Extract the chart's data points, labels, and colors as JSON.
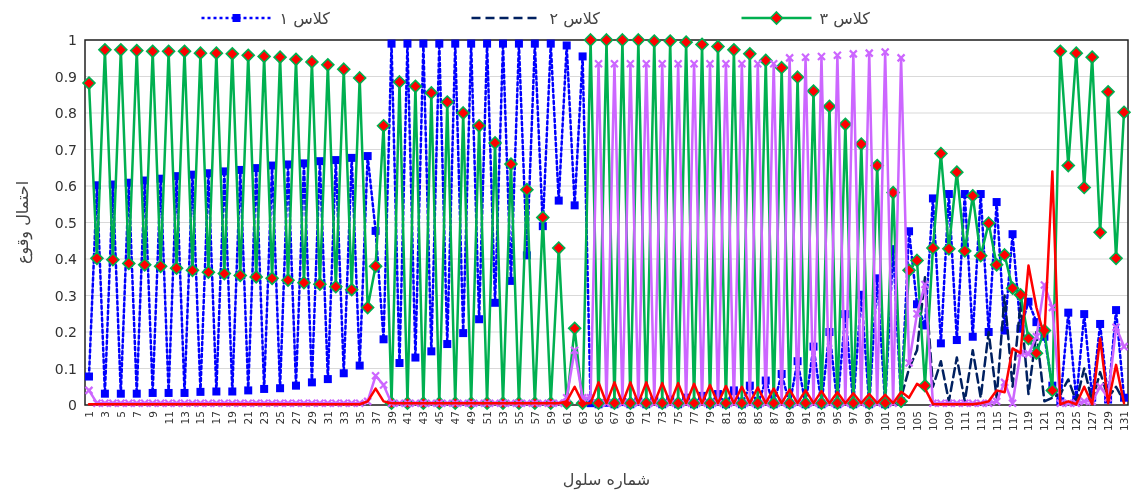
{
  "chart_data": {
    "type": "line",
    "xlabel": "شماره سلول",
    "ylabel": "احتمال وقوع",
    "ylim": [
      0,
      1
    ],
    "yticks": [
      0,
      0.1,
      0.2,
      0.3,
      0.4,
      0.5,
      0.6,
      0.7,
      0.8,
      0.9,
      1
    ],
    "grid": "y",
    "legend": "top",
    "categories": [
      "1",
      null,
      "3",
      null,
      "5",
      null,
      "7",
      null,
      "9",
      null,
      "11",
      null,
      "13",
      null,
      "15",
      null,
      "17",
      null,
      "19",
      null,
      "21",
      null,
      "23",
      null,
      "25",
      null,
      "27",
      null,
      "29",
      null,
      "31",
      null,
      "33",
      null,
      "35",
      null,
      "37",
      null,
      "39",
      null,
      "41",
      null,
      "43",
      null,
      "45",
      null,
      "47",
      null,
      "49",
      null,
      "51",
      null,
      "53",
      null,
      "55",
      null,
      "57",
      null,
      "59",
      null,
      "61",
      null,
      "63",
      null,
      "65",
      null,
      "67",
      null,
      "69",
      null,
      "71",
      null,
      "73",
      null,
      "75",
      null,
      "77",
      null,
      "79",
      null,
      "81",
      null,
      "83",
      null,
      "85",
      null,
      "87",
      null,
      "89",
      null,
      "91",
      null,
      "93",
      null,
      "95",
      null,
      "97",
      null,
      "99",
      null,
      "101",
      null,
      "103",
      null,
      "105",
      null,
      "107",
      null,
      "109",
      null,
      "111",
      null,
      "113",
      null,
      "115",
      null,
      "117",
      null,
      "119",
      null,
      "121",
      null,
      "123",
      null,
      "125",
      null,
      "127",
      null,
      "129",
      null,
      "131"
    ],
    "series": [
      {
        "name": "کلاس ۱",
        "color": "#0000ff",
        "marker": "square",
        "line_style": "dotted",
        "values": [
          0.078,
          0.602,
          0.031,
          0.604,
          0.031,
          0.609,
          0.031,
          0.615,
          0.033,
          0.62,
          0.033,
          0.627,
          0.033,
          0.631,
          0.036,
          0.635,
          0.037,
          0.64,
          0.037,
          0.644,
          0.04,
          0.649,
          0.044,
          0.656,
          0.046,
          0.659,
          0.053,
          0.662,
          0.062,
          0.668,
          0.071,
          0.671,
          0.087,
          0.677,
          0.108,
          0.682,
          0.477,
          0.18,
          0.99,
          0.115,
          0.99,
          0.13,
          0.99,
          0.147,
          0.99,
          0.167,
          0.99,
          0.197,
          0.99,
          0.235,
          0.99,
          0.28,
          0.99,
          0.34,
          0.99,
          0.41,
          0.99,
          0.49,
          0.99,
          0.56,
          0.985,
          0.547,
          0.955,
          0.005,
          0.002,
          0.006,
          0.002,
          0.008,
          0.002,
          0.01,
          0.002,
          0.012,
          0.002,
          0.015,
          0.002,
          0.02,
          0.002,
          0.025,
          0.002,
          0.03,
          0.002,
          0.04,
          0.002,
          0.053,
          0.002,
          0.067,
          0.002,
          0.085,
          0.002,
          0.12,
          0.002,
          0.16,
          0.002,
          0.2,
          0.002,
          0.249,
          0.002,
          0.302,
          0.002,
          0.347,
          0.002,
          0.427,
          0.01,
          0.476,
          0.276,
          0.218,
          0.566,
          0.169,
          0.578,
          0.178,
          0.578,
          0.187,
          0.578,
          0.2,
          0.556,
          0.204,
          0.468,
          0.209,
          0.283,
          0.227,
          0.187,
          0.053,
          0.01,
          0.253,
          0.015,
          0.249,
          0.02,
          0.222,
          0.015,
          0.26,
          0.02
        ]
      },
      {
        "name": "کلاس ۲",
        "color": "#002060",
        "marker": "none",
        "line_style": "dashed",
        "values": [
          null,
          null,
          null,
          null,
          null,
          null,
          null,
          null,
          null,
          null,
          null,
          null,
          null,
          null,
          null,
          null,
          null,
          null,
          null,
          null,
          null,
          null,
          null,
          null,
          null,
          null,
          null,
          null,
          null,
          null,
          null,
          null,
          null,
          null,
          null,
          null,
          null,
          null,
          null,
          null,
          null,
          null,
          null,
          null,
          null,
          null,
          null,
          null,
          null,
          null,
          null,
          null,
          null,
          null,
          null,
          null,
          null,
          null,
          null,
          null,
          null,
          null,
          null,
          null,
          null,
          null,
          null,
          null,
          null,
          null,
          null,
          null,
          null,
          null,
          null,
          null,
          null,
          null,
          null,
          null,
          null,
          null,
          null,
          null,
          null,
          null,
          null,
          null,
          null,
          null,
          null,
          null,
          null,
          null,
          null,
          null,
          null,
          null,
          null,
          null,
          null,
          0.002,
          0.02,
          0.1,
          0.15,
          0.35,
          0.05,
          0.12,
          0.01,
          0.13,
          0.01,
          0.15,
          0.02,
          0.2,
          0.02,
          0.3,
          0.05,
          0.28,
          0.03,
          0.2,
          0.01,
          0.02,
          0.03,
          0.07,
          0.01,
          0.1,
          0.01,
          0.09,
          0.02,
          0.05,
          0.01
        ]
      },
      {
        "name": "کلاس ۳",
        "color": "#00b050",
        "marker": "diamond",
        "line_style": "solid",
        "values": [
          0.882,
          0.402,
          0.973,
          0.398,
          0.973,
          0.388,
          0.971,
          0.384,
          0.969,
          0.38,
          0.969,
          0.375,
          0.969,
          0.369,
          0.964,
          0.364,
          0.964,
          0.36,
          0.962,
          0.355,
          0.958,
          0.351,
          0.955,
          0.347,
          0.953,
          0.342,
          0.947,
          0.335,
          0.94,
          0.331,
          0.932,
          0.324,
          0.92,
          0.316,
          0.896,
          0.267,
          0.38,
          0.765,
          0.005,
          0.885,
          0.005,
          0.873,
          0.005,
          0.855,
          0.005,
          0.83,
          0.005,
          0.8,
          0.005,
          0.765,
          0.005,
          0.718,
          0.005,
          0.66,
          0.005,
          0.59,
          0.005,
          0.514,
          0.005,
          0.43,
          0.005,
          0.21,
          0.005,
          1,
          0.005,
          1,
          0.005,
          1,
          0.005,
          1,
          0.005,
          0.997,
          0.005,
          0.997,
          0.005,
          0.994,
          0.005,
          0.988,
          0.005,
          0.982,
          0.005,
          0.973,
          0.005,
          0.962,
          0.005,
          0.944,
          0.005,
          0.924,
          0.005,
          0.898,
          0.005,
          0.86,
          0.005,
          0.818,
          0.005,
          0.769,
          0.005,
          0.715,
          0.005,
          0.656,
          0.005,
          0.582,
          0.01,
          0.369,
          0.396,
          0.053,
          0.43,
          0.689,
          0.428,
          0.638,
          0.422,
          0.573,
          0.409,
          0.498,
          0.384,
          0.411,
          0.32,
          0.302,
          0.182,
          0.142,
          0.204,
          0.04,
          0.969,
          0.656,
          0.964,
          0.596,
          0.953,
          0.473,
          0.858,
          0.402,
          0.802
        ]
      },
      {
        "color": "#cc66ff",
        "marker": "cross",
        "line_style": "solid",
        "values": [
          0.04,
          0.005,
          0.005,
          0.005,
          0.005,
          0.005,
          0.005,
          0.005,
          0.005,
          0.005,
          0.005,
          0.005,
          0.005,
          0.005,
          0.005,
          0.005,
          0.005,
          0.005,
          0.005,
          0.005,
          0.005,
          0.005,
          0.005,
          0.005,
          0.005,
          0.005,
          0.005,
          0.005,
          0.005,
          0.005,
          0.005,
          0.005,
          0.005,
          0.005,
          0.005,
          0.01,
          0.08,
          0.055,
          0.005,
          0.005,
          0.005,
          0.005,
          0.005,
          0.005,
          0.005,
          0.005,
          0.005,
          0.005,
          0.005,
          0.005,
          0.005,
          0.005,
          0.005,
          0.005,
          0.005,
          0.005,
          0.005,
          0.005,
          0.005,
          0.005,
          0.02,
          0.15,
          0.02,
          0.02,
          0.935,
          0.005,
          0.935,
          0.005,
          0.935,
          0.005,
          0.935,
          0.005,
          0.935,
          0.005,
          0.935,
          0.005,
          0.935,
          0.005,
          0.935,
          0.005,
          0.935,
          0.005,
          0.935,
          0.005,
          0.935,
          0.005,
          0.935,
          0.005,
          0.951,
          0.005,
          0.953,
          0.005,
          0.955,
          0.005,
          0.958,
          0.005,
          0.962,
          0.005,
          0.964,
          0.005,
          0.967,
          0.005,
          0.951,
          0.115,
          0.25,
          0.33,
          0.005,
          0.005,
          0.005,
          0.005,
          0.005,
          0.005,
          0.005,
          0.005,
          0.01,
          0.062,
          0.005,
          0.142,
          0.14,
          0.187,
          0.329,
          0.267,
          0.005,
          0.005,
          0.005,
          0.01,
          0.01,
          0.05,
          0.02,
          0.213,
          0.16
        ]
      },
      {
        "color": "#ff0000",
        "marker": "none",
        "line_style": "solid",
        "values": [
          0.002,
          0.002,
          0.002,
          0.002,
          0.002,
          0.002,
          0.002,
          0.002,
          0.002,
          0.002,
          0.002,
          0.002,
          0.002,
          0.002,
          0.002,
          0.002,
          0.002,
          0.002,
          0.002,
          0.002,
          0.002,
          0.002,
          0.002,
          0.002,
          0.002,
          0.002,
          0.002,
          0.002,
          0.002,
          0.002,
          0.002,
          0.002,
          0.002,
          0.002,
          0.002,
          0.01,
          0.045,
          0.01,
          0.005,
          0.005,
          0.005,
          0.005,
          0.005,
          0.005,
          0.005,
          0.005,
          0.005,
          0.005,
          0.005,
          0.005,
          0.005,
          0.005,
          0.005,
          0.005,
          0.005,
          0.005,
          0.005,
          0.005,
          0.005,
          0.005,
          0.01,
          0.05,
          0.005,
          0.005,
          0.062,
          0.005,
          0.062,
          0.005,
          0.062,
          0.005,
          0.062,
          0.005,
          0.06,
          0.005,
          0.06,
          0.005,
          0.058,
          0.005,
          0.055,
          0.005,
          0.052,
          0.005,
          0.05,
          0.005,
          0.048,
          0.005,
          0.045,
          0.005,
          0.042,
          0.005,
          0.04,
          0.005,
          0.038,
          0.005,
          0.035,
          0.005,
          0.032,
          0.005,
          0.03,
          0.005,
          0.028,
          0.005,
          0.036,
          0.02,
          0.058,
          0.045,
          0.003,
          0.002,
          0.002,
          0.002,
          0.002,
          0.002,
          0.005,
          0.01,
          0.04,
          0.035,
          0.155,
          0.142,
          0.382,
          0.267,
          0.187,
          0.64,
          0.002,
          0.01,
          0.002,
          0.05,
          0.002,
          0.182,
          0.005,
          0.11,
          0.005
        ]
      }
    ]
  }
}
